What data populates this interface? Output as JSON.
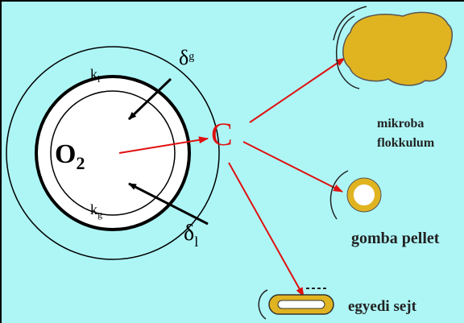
{
  "symbols": [
    {
      "main": "k",
      "sub": "l"
    },
    {
      "main": "δ",
      "sub": "g"
    },
    {
      "main": "O",
      "sub": "2"
    },
    {
      "main": "k",
      "sub": "g"
    },
    {
      "main": "δ",
      "sub": "l"
    }
  ],
  "center": "C",
  "targets": [
    {
      "lines": [
        "mikroba",
        "flokkulum"
      ]
    },
    {
      "lines": [
        "gomba pellet"
      ]
    },
    {
      "lines": [
        "egyedi sejt"
      ]
    }
  ]
}
